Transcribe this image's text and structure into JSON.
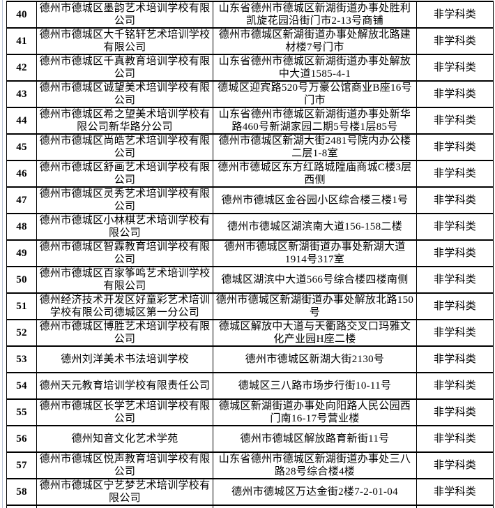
{
  "table": {
    "rows": [
      {
        "no": "40",
        "name": "德州市德城区墨韵艺术培训学校有限公司",
        "address": "山东省德州市德城区新湖街道办事处胜利凯旋花园沿街门市2-13号商铺",
        "category": "非学科类"
      },
      {
        "no": "41",
        "name": "德州市德城区大千铭轩艺术培训学校有限公司",
        "address": "德州市德城区新湖街道办事处解放北路建材楼7号门市",
        "category": "非学科类"
      },
      {
        "no": "42",
        "name": "德州市德城区千真教育培训学校有限公司",
        "address": "山东省德州市德城区新湖街道办事处解放中大道1585-4-1",
        "category": "非学科类"
      },
      {
        "no": "43",
        "name": "德州市德城区诚望美术培训学校有限公司",
        "address": "德城区迎宾路520号万豪公馆商业B座16号门市",
        "category": "非学科类"
      },
      {
        "no": "44",
        "name": "德州市德城区希之望美术培训学校有限公司新华路分公司",
        "address": "山东省德州市德城区新湖街道办事处新华路460号新湖家园二期5号楼1层85号",
        "category": "非学科类"
      },
      {
        "no": "45",
        "name": "德州市德城区尚皓艺术培训学校有限公司",
        "address": "德州市德城区新湖大街2481号院内办公楼二层1-8室",
        "category": "非学科类"
      },
      {
        "no": "46",
        "name": "德州市德城区舒画艺术培训学校有限公司",
        "address": "德州市德城区东方红路城隍庙商城C楼3层西侧",
        "category": "非学科类"
      },
      {
        "no": "47",
        "name": "德州市德城区灵秀艺术培训学校有限公司",
        "address": "德州市德城区金谷园小区综合楼三楼1号",
        "category": "非学科类"
      },
      {
        "no": "48",
        "name": "德州市德城区小林棋艺术培训学校有限公司",
        "address": "德州市德城区湖滨南大道156-158二楼",
        "category": "非学科类"
      },
      {
        "no": "49",
        "name": "德州市德城区智霖教育培训学校有限公司",
        "address": "德州市德城区新湖街道办事处新湖大道1914号317室",
        "category": "非学科类"
      },
      {
        "no": "50",
        "name": "德州市德城区百家筝鸣艺术培训学校有限公司",
        "address": "德城区湖滨中大道566号综合楼四楼南侧",
        "category": "非学科类"
      },
      {
        "no": "51",
        "name": "德州经济技术开发区好童彩艺术培训学校有限公司德城区第一分公司",
        "address": "德州市德城区新湖街道办事处解放北路150号",
        "category": "非学科类"
      },
      {
        "no": "52",
        "name": "德州市德城区博胜艺术培训学校有限公司",
        "address": "德城区解放中大道与天衢路交叉口玛雅文化产业园H座二楼",
        "category": "非学科类"
      },
      {
        "no": "53",
        "name": "德州刘洋美术书法培训学校",
        "address": "德州市德城区新湖大街2130号",
        "category": "非学科类"
      },
      {
        "no": "54",
        "name": "德州天元教育培训学校有限责任公司",
        "address": "德城区三八路市场步行街10-11号",
        "category": "非学科类"
      },
      {
        "no": "55",
        "name": "德州市德城区长学艺术培训学校有限公司",
        "address": "德城区新湖街道办事处向阳路人民公园西门南16-17号营业楼",
        "category": "非学科类"
      },
      {
        "no": "56",
        "name": "德州知音文化艺术学苑",
        "address": "德州市德城区解放路育新街11号",
        "category": "非学科类"
      },
      {
        "no": "57",
        "name": "德州市德城区悦声教育培训学校有限公司",
        "address": "山东省德州市德城区新湖街道办事处三八路28号综合楼4楼",
        "category": "非学科类"
      },
      {
        "no": "58",
        "name": "德州市德城区宁艺梦艺术培训学校有限公司",
        "address": "德州市德城区万达金街2楼7-2-01-04",
        "category": "非学科类"
      }
    ]
  }
}
